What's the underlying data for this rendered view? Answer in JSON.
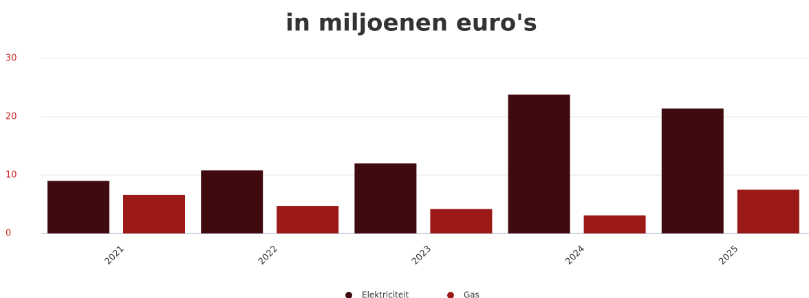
{
  "chart_data": {
    "type": "bar",
    "title": "in miljoenen euro's",
    "categories": [
      "2021",
      "2022",
      "2023",
      "2024",
      "2025"
    ],
    "series": [
      {
        "name": "Elektriciteit",
        "color": "#3f0b0f",
        "values": [
          9.0,
          10.8,
          12.0,
          23.8,
          21.4
        ]
      },
      {
        "name": "Gas",
        "color": "#9b1a17",
        "values": [
          6.6,
          4.7,
          4.2,
          3.1,
          7.5
        ]
      }
    ],
    "ylim": [
      0,
      30
    ],
    "yticks": [
      0,
      10,
      20,
      30
    ],
    "grid": true,
    "legend": "bottom"
  }
}
